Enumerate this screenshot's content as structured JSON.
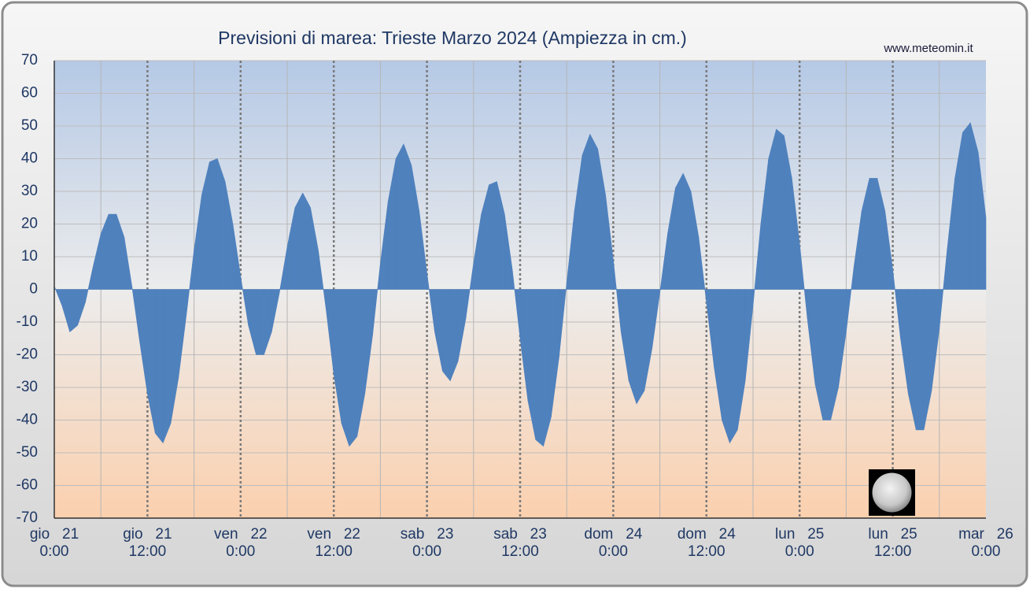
{
  "chart_data": {
    "type": "area",
    "title": "Previsioni di marea: Trieste Marzo 2024 (Ampiezza in cm.)",
    "source": "www.meteomin.it",
    "x": [
      0,
      1,
      2,
      3,
      4,
      5,
      6,
      7,
      8,
      9,
      10,
      11,
      12,
      13,
      14,
      15,
      16,
      17,
      18,
      19,
      20,
      21,
      22,
      23,
      24,
      25,
      26,
      27,
      28,
      29,
      30,
      31,
      32,
      33,
      34,
      35,
      36,
      37,
      38,
      39,
      40,
      41,
      42,
      43,
      44,
      45,
      46,
      47,
      48,
      49,
      50,
      51,
      52,
      53,
      54,
      55,
      56,
      57,
      58,
      59,
      60,
      61,
      62,
      63,
      64,
      65,
      66,
      67,
      68,
      69,
      70,
      71,
      72,
      73,
      74,
      75,
      76,
      77,
      78,
      79,
      80,
      81,
      82,
      83,
      84,
      85,
      86,
      87,
      88,
      89,
      90,
      91,
      92,
      93,
      94,
      95,
      96,
      97,
      98,
      99,
      100,
      101,
      102,
      103,
      104,
      105,
      106,
      107,
      108,
      109,
      110,
      111,
      112,
      113,
      114,
      115,
      116,
      117,
      118,
      119,
      120
    ],
    "values": [
      1,
      -5,
      -13,
      -11,
      -4,
      7,
      17,
      23,
      23,
      16,
      1,
      -16,
      -32,
      -44,
      -47,
      -41,
      -27,
      -8,
      12,
      29,
      39,
      40,
      33,
      20,
      4,
      -11,
      -20,
      -20,
      -13,
      -1,
      13,
      25,
      29.5,
      25,
      12,
      -6,
      -26,
      -41,
      -48,
      -45,
      -32,
      -14,
      8,
      27,
      40,
      44.5,
      38,
      24,
      5,
      -13,
      -25,
      -28,
      -22,
      -9,
      8,
      23,
      32,
      33,
      23,
      6,
      -15,
      -34,
      -46,
      -48,
      -39,
      -21,
      2,
      24,
      41,
      47.5,
      43,
      29,
      9,
      -13,
      -28,
      -35,
      -31,
      -18,
      -1,
      17,
      31,
      35.5,
      30,
      16,
      -4,
      -24,
      -40,
      -47,
      -43,
      -28,
      -5,
      20,
      40,
      49,
      47,
      34,
      14,
      -9,
      -29,
      -40,
      -40,
      -30,
      -13,
      7,
      24,
      34,
      34,
      24,
      6,
      -15,
      -32,
      -43,
      -43,
      -31,
      -12,
      12,
      34,
      48,
      51,
      42,
      22
    ],
    "color": "#4f81bd",
    "xlim": [
      0,
      120
    ],
    "xticks": [
      {
        "value": 0,
        "label": "gio   21",
        "time": "0:00"
      },
      {
        "value": 12,
        "label": "gio   21",
        "time": "12:00"
      },
      {
        "value": 24,
        "label": "ven   22",
        "time": "0:00"
      },
      {
        "value": 36,
        "label": "ven   22",
        "time": "12:00"
      },
      {
        "value": 48,
        "label": "sab   23",
        "time": "0:00"
      },
      {
        "value": 60,
        "label": "sab   23",
        "time": "12:00"
      },
      {
        "value": 72,
        "label": "dom   24",
        "time": "0:00"
      },
      {
        "value": 84,
        "label": "dom   24",
        "time": "12:00"
      },
      {
        "value": 96,
        "label": "lun   25",
        "time": "0:00"
      },
      {
        "value": 108,
        "label": "lun   25",
        "time": "12:00"
      },
      {
        "value": 120,
        "label": "mar   26",
        "time": "0:00"
      }
    ],
    "ylim": [
      -70,
      70
    ],
    "yticks": [
      -70,
      -60,
      -50,
      -40,
      -30,
      -20,
      -10,
      0,
      10,
      20,
      30,
      40,
      50,
      60,
      70
    ],
    "grid": true
  }
}
